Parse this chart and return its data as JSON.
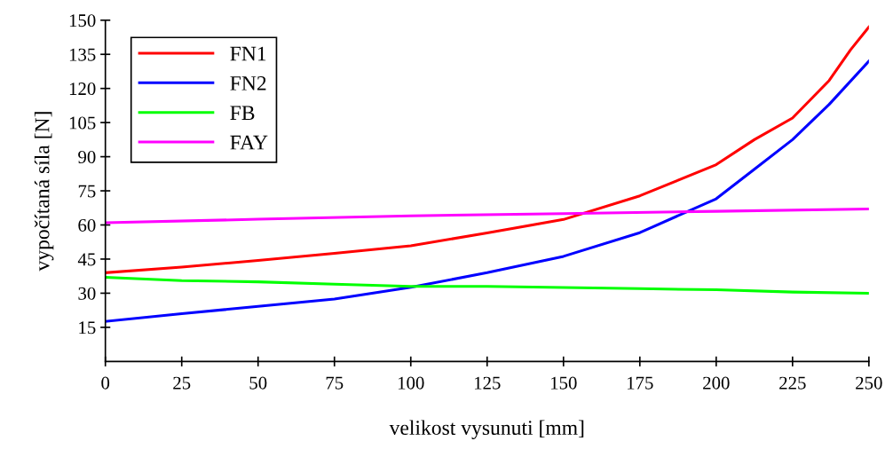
{
  "chart_data": {
    "type": "line",
    "xlabel": "velikost vysunuti [mm]",
    "ylabel": "vypočítaná síla [N]",
    "xlim": [
      0,
      250
    ],
    "xticks": [
      0,
      25,
      50,
      75,
      100,
      125,
      150,
      175,
      200,
      225,
      250
    ],
    "ylim": [
      0,
      150
    ],
    "yticks": [
      15,
      30,
      45,
      60,
      75,
      90,
      105,
      120,
      135,
      150
    ],
    "grid": false,
    "legend": "top left",
    "marker": "none",
    "line_style": "solid",
    "series": [
      {
        "name": "FN1",
        "color": "#ff0000",
        "x": [
          0,
          25,
          50,
          75,
          100,
          125,
          150,
          175,
          200,
          212.5,
          225,
          237,
          244,
          250
        ],
        "values": [
          39,
          41.5,
          44.4,
          47.5,
          50.8,
          56.5,
          62.4,
          72.8,
          86.5,
          97.5,
          107,
          123.5,
          137,
          147
        ]
      },
      {
        "name": "FN2",
        "color": "#0000ff",
        "x": [
          0,
          25,
          50,
          75,
          100,
          125,
          150,
          175,
          200,
          212.5,
          225,
          237,
          250
        ],
        "values": [
          17.6,
          21,
          24.2,
          27.4,
          32.6,
          39,
          46.2,
          56.6,
          71.5,
          84.5,
          97.5,
          113,
          132
        ]
      },
      {
        "name": "FB",
        "color": "#00ff00",
        "x": [
          0,
          25,
          50,
          75,
          100,
          125,
          150,
          175,
          200,
          225,
          250
        ],
        "values": [
          37,
          35.5,
          35,
          34,
          33,
          33,
          32.5,
          32,
          31.5,
          30.5,
          30
        ]
      },
      {
        "name": "FAY",
        "color": "#ff00ff",
        "x": [
          0,
          50,
          100,
          150,
          200,
          250
        ],
        "values": [
          61,
          62.5,
          64,
          65,
          66,
          67
        ]
      }
    ]
  }
}
